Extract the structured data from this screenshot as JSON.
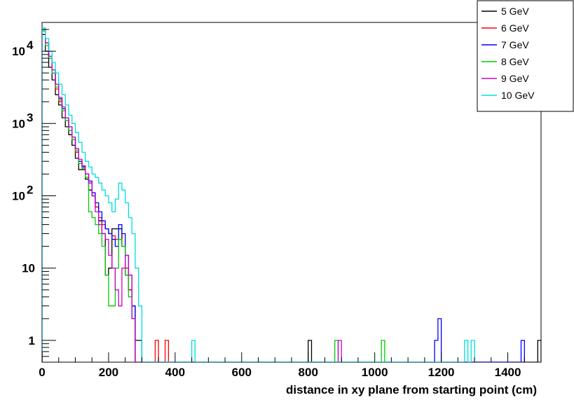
{
  "chart_data": {
    "type": "line",
    "title": "",
    "xlabel": "distance in xy plane from starting point (cm)",
    "ylabel": "",
    "xlim": [
      0,
      1500
    ],
    "ylim": [
      0.5,
      25000
    ],
    "yscale": "log",
    "histogram_style": "step",
    "bin_width": 10,
    "grid": false,
    "legend_position": "top-right",
    "x_ticks": [
      {
        "value": 0,
        "label": "0"
      },
      {
        "value": 200,
        "label": "200"
      },
      {
        "value": 400,
        "label": "400"
      },
      {
        "value": 600,
        "label": "600"
      },
      {
        "value": 800,
        "label": "800"
      },
      {
        "value": 1000,
        "label": "1000"
      },
      {
        "value": 1200,
        "label": "1200"
      },
      {
        "value": 1400,
        "label": "1400"
      }
    ],
    "y_ticks": [
      {
        "value": 1,
        "label": "1"
      },
      {
        "value": 10,
        "label": "10"
      },
      {
        "value": 100,
        "label": "10",
        "exponent": "2"
      },
      {
        "value": 1000,
        "label": "10",
        "exponent": "3"
      },
      {
        "value": 10000,
        "label": "10",
        "exponent": "4"
      }
    ],
    "series": [
      {
        "name": "5 GeV",
        "color": "#000000",
        "x": [
          5,
          15,
          25,
          35,
          45,
          55,
          65,
          75,
          85,
          95,
          105,
          115,
          125,
          135,
          145,
          155,
          165,
          175,
          185,
          195,
          205,
          215,
          225,
          235,
          245,
          255,
          265,
          275,
          285,
          295,
          805,
          1495
        ],
        "y": [
          17000,
          10000,
          6000,
          4000,
          2500,
          1800,
          1200,
          900,
          700,
          500,
          330,
          230,
          230,
          170,
          120,
          100,
          70,
          45,
          30,
          8,
          10,
          35,
          35,
          35,
          20,
          8,
          5,
          3,
          1,
          1,
          1,
          1
        ]
      },
      {
        "name": "6 GeV",
        "color": "#ff0000",
        "x": [
          5,
          15,
          25,
          35,
          45,
          55,
          65,
          75,
          85,
          95,
          105,
          115,
          125,
          135,
          145,
          155,
          165,
          175,
          185,
          195,
          205,
          215,
          225,
          235,
          245,
          255,
          265,
          275,
          345,
          375
        ],
        "y": [
          20000,
          13000,
          8000,
          5000,
          3000,
          2000,
          1500,
          1100,
          800,
          600,
          400,
          300,
          260,
          200,
          150,
          100,
          70,
          50,
          40,
          35,
          30,
          28,
          25,
          25,
          20,
          10,
          5,
          2,
          1,
          1
        ]
      },
      {
        "name": "7 GeV",
        "color": "#0000ff",
        "x": [
          5,
          15,
          25,
          35,
          45,
          55,
          65,
          75,
          85,
          95,
          105,
          115,
          125,
          135,
          145,
          155,
          165,
          175,
          185,
          195,
          205,
          215,
          225,
          235,
          245,
          255,
          265,
          275,
          1185,
          1195,
          1445
        ],
        "y": [
          19000,
          13000,
          8500,
          5500,
          3500,
          2200,
          1600,
          1200,
          900,
          650,
          450,
          300,
          250,
          200,
          160,
          110,
          80,
          60,
          45,
          35,
          30,
          25,
          20,
          40,
          30,
          15,
          8,
          3,
          1,
          2,
          1
        ]
      },
      {
        "name": "8 GeV",
        "color": "#00cc00",
        "x": [
          5,
          15,
          25,
          35,
          45,
          55,
          65,
          75,
          85,
          95,
          105,
          115,
          125,
          135,
          145,
          155,
          165,
          175,
          185,
          195,
          205,
          215,
          225,
          235,
          245,
          255,
          265,
          275,
          885,
          1025
        ],
        "y": [
          19000,
          12000,
          8000,
          5000,
          3200,
          2100,
          1500,
          1100,
          800,
          600,
          420,
          280,
          240,
          180,
          60,
          50,
          40,
          30,
          20,
          8,
          3,
          3,
          10,
          25,
          20,
          8,
          4,
          2,
          1,
          1
        ]
      },
      {
        "name": "9 GeV",
        "color": "#cc00cc",
        "x": [
          5,
          15,
          25,
          35,
          45,
          55,
          65,
          75,
          85,
          95,
          105,
          115,
          125,
          135,
          145,
          155,
          165,
          175,
          185,
          195,
          205,
          215,
          225,
          235,
          245,
          255,
          265,
          275,
          895
        ],
        "y": [
          20000,
          13000,
          8500,
          5500,
          3500,
          2300,
          1700,
          1200,
          900,
          650,
          450,
          320,
          260,
          200,
          150,
          100,
          60,
          40,
          30,
          25,
          15,
          10,
          5,
          3,
          10,
          15,
          8,
          2,
          1
        ]
      },
      {
        "name": "10 GeV",
        "color": "#00dddd",
        "x": [
          5,
          15,
          25,
          35,
          45,
          55,
          65,
          75,
          85,
          95,
          105,
          115,
          125,
          135,
          145,
          155,
          165,
          175,
          185,
          195,
          205,
          215,
          225,
          235,
          245,
          255,
          265,
          275,
          285,
          295,
          455,
          1275,
          1295
        ],
        "y": [
          21000,
          15000,
          10000,
          7000,
          5000,
          3500,
          2500,
          1800,
          1300,
          1000,
          750,
          550,
          400,
          300,
          250,
          200,
          180,
          150,
          120,
          100,
          80,
          60,
          90,
          150,
          120,
          80,
          50,
          30,
          10,
          3,
          1,
          1,
          1
        ]
      }
    ]
  }
}
